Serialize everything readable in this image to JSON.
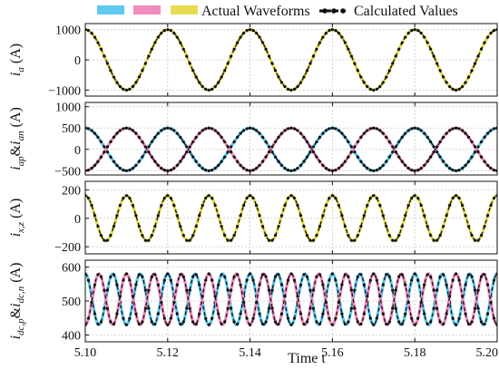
{
  "legend": {
    "actual_label": "Actual Waveforms",
    "calculated_label": "Calculated Values",
    "actual_colors": [
      "#5ec8f0",
      "#f08cbe",
      "#e6dc50"
    ]
  },
  "xaxis": {
    "label": "Time t",
    "range": [
      5.1,
      5.2
    ],
    "ticks": [
      5.1,
      5.12,
      5.14,
      5.16,
      5.18,
      5.2
    ],
    "tick_labels": [
      "5.10",
      "5.12",
      "5.14",
      "5.16",
      "5.18",
      "5.20"
    ]
  },
  "chart_data": [
    {
      "type": "line",
      "ylabel_sym": "i",
      "ylabel_sub": "a",
      "ylabel_unit": " (A)",
      "ylim": [
        -1200,
        1200
      ],
      "yticks": [
        -1000,
        0,
        1000
      ],
      "ytick_labels": [
        "−1000",
        "0",
        "1000"
      ],
      "series": [
        {
          "color": "#e6dc50",
          "amplitude": 1000,
          "offset": 0,
          "frequency_hz": 50,
          "phase_deg": 0
        }
      ]
    },
    {
      "type": "line",
      "ylabel_sym": "i",
      "ylabel_sub": "ap",
      "ylabel_mid": "&",
      "ylabel_sym2": "i",
      "ylabel_sub2": "an",
      "ylabel_unit": " (A)",
      "ylim": [
        -600,
        1100
      ],
      "yticks": [
        -500,
        0,
        500,
        1000
      ],
      "ytick_labels": [
        "−500",
        "0",
        "500",
        "1000"
      ],
      "series": [
        {
          "color": "#5ec8f0",
          "amplitude": 500,
          "offset": 0,
          "frequency_hz": 50,
          "phase_deg": 0
        },
        {
          "color": "#f08cbe",
          "amplitude": 500,
          "offset": 0,
          "frequency_hz": 50,
          "phase_deg": 180
        }
      ]
    },
    {
      "type": "line",
      "ylabel_sym": "i",
      "ylabel_sub": "x,z",
      "ylabel_unit": " (A)",
      "ylim": [
        -250,
        260
      ],
      "yticks": [
        -200,
        0,
        200
      ],
      "ytick_labels": [
        "−200",
        "0",
        "200"
      ],
      "series": [
        {
          "color": "#e6dc50",
          "amplitude": 160,
          "offset": 0,
          "frequency_hz": 100,
          "phase_deg": 0
        }
      ]
    },
    {
      "type": "line",
      "ylabel_sym": "i",
      "ylabel_sub": "dc,p",
      "ylabel_mid": "&",
      "ylabel_sym2": "i",
      "ylabel_sub2": "dc,n",
      "ylabel_unit": " (A)",
      "ylim": [
        380,
        620
      ],
      "yticks": [
        400,
        500,
        600
      ],
      "ytick_labels": [
        "400",
        "500",
        "600"
      ],
      "series": [
        {
          "color": "#5ec8f0",
          "amplitude": 75,
          "offset": 505,
          "frequency_hz": 150,
          "phase_deg": 0
        },
        {
          "color": "#f08cbe",
          "amplitude": 75,
          "offset": 505,
          "frequency_hz": 150,
          "phase_deg": 180
        }
      ]
    }
  ]
}
